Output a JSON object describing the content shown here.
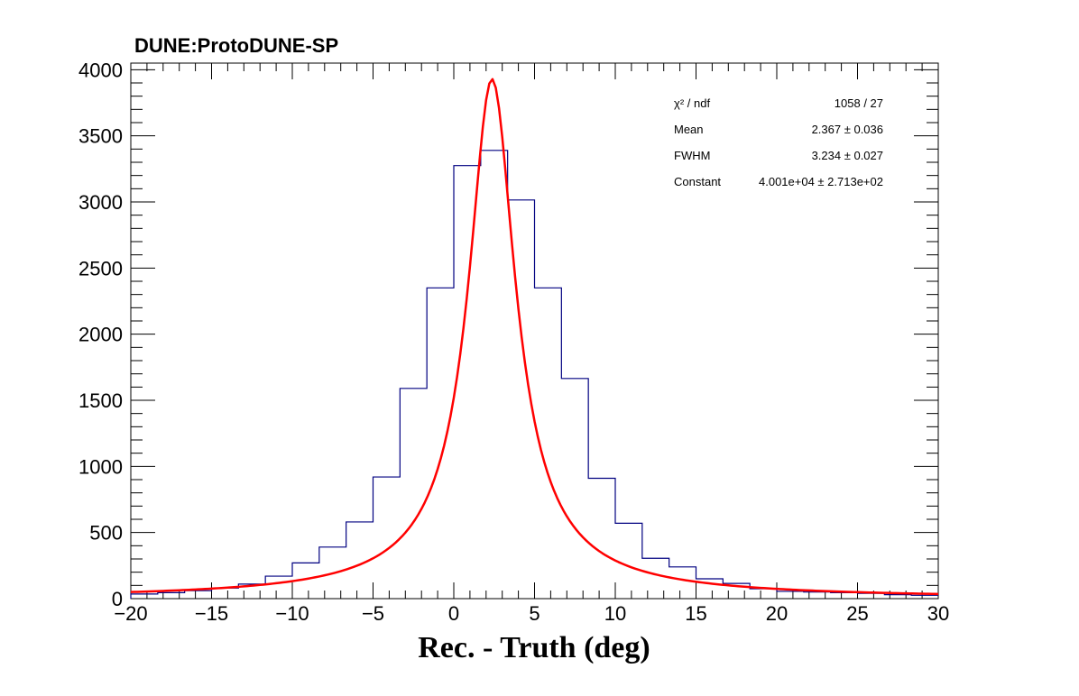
{
  "chart_data": {
    "type": "histogram",
    "title": "DUNE:ProtoDUNE-SP",
    "xlabel": "Rec. - Truth (deg)",
    "ylabel": "",
    "xlim": [
      -20,
      30
    ],
    "ylim": [
      0,
      4050
    ],
    "x_ticks": [
      -20,
      -15,
      -10,
      -5,
      0,
      5,
      10,
      15,
      20,
      25,
      30
    ],
    "x_tick_labels": [
      "−20",
      "−15",
      "−10",
      "−5",
      "0",
      "5",
      "10",
      "15",
      "20",
      "25",
      "30"
    ],
    "y_ticks": [
      0,
      500,
      1000,
      1500,
      2000,
      2500,
      3000,
      3500,
      4000
    ],
    "y_tick_labels": [
      "0",
      "500",
      "1000",
      "1500",
      "2000",
      "2500",
      "3000",
      "3500",
      "4000"
    ],
    "histogram": {
      "bin_edges": [
        -20,
        -18.333,
        -16.667,
        -15,
        -13.333,
        -11.667,
        -10,
        -8.333,
        -6.667,
        -5,
        -3.333,
        -1.667,
        0,
        1.667,
        3.333,
        5,
        6.667,
        8.333,
        10,
        11.667,
        13.333,
        15,
        16.667,
        18.333,
        20,
        21.667,
        23.333,
        25,
        26.667,
        28.333,
        30
      ],
      "counts": [
        35,
        45,
        60,
        80,
        110,
        170,
        270,
        390,
        580,
        920,
        1590,
        2350,
        3275,
        3390,
        3015,
        2350,
        1665,
        910,
        570,
        305,
        240,
        150,
        115,
        75,
        55,
        50,
        45,
        40,
        30,
        25
      ],
      "color": "#000080"
    },
    "fit": {
      "color": "#ff0000",
      "peak_x": 2.367,
      "peak_y": 3930,
      "fwhm": 3.234,
      "wing_exponent": 0.83
    },
    "stats": [
      {
        "label": "χ² / ndf",
        "value": "1058 / 27"
      },
      {
        "label": "Mean",
        "value": "2.367 ± 0.036"
      },
      {
        "label": "FWHM",
        "value": "3.234 ± 0.027"
      },
      {
        "label": "Constant",
        "value": "4.001e+04 ± 2.713e+02"
      }
    ]
  }
}
